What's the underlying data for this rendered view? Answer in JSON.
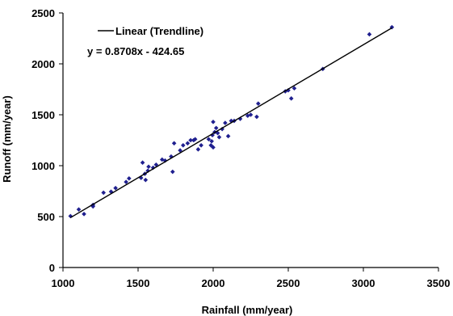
{
  "chart_data": {
    "type": "scatter",
    "title": "",
    "xlabel": "Rainfall (mm/year)",
    "ylabel": "Runoff (mm/year)",
    "xlim": [
      1000,
      3500
    ],
    "ylim": [
      0,
      2500
    ],
    "x_ticks": [
      "1000",
      "1500",
      "2000",
      "2500",
      "3000",
      "3500"
    ],
    "y_ticks": [
      "0",
      "500",
      "1000",
      "1500",
      "2000",
      "2500"
    ],
    "grid": false,
    "legend": {
      "label": "Linear (Trendline)",
      "position": "top-left"
    },
    "equation_label": "y = 0.8708x - 424.65",
    "trendline": {
      "slope": 0.8708,
      "intercept": -424.65,
      "x_range": [
        1050,
        3190
      ]
    },
    "marker_color": "#1f1f8f",
    "line_color": "#000000",
    "points": [
      [
        1050,
        505
      ],
      [
        1105,
        570
      ],
      [
        1140,
        525
      ],
      [
        1200,
        600
      ],
      [
        1200,
        615
      ],
      [
        1270,
        735
      ],
      [
        1320,
        745
      ],
      [
        1350,
        780
      ],
      [
        1420,
        840
      ],
      [
        1440,
        875
      ],
      [
        1520,
        880
      ],
      [
        1530,
        1030
      ],
      [
        1545,
        920
      ],
      [
        1550,
        860
      ],
      [
        1565,
        950
      ],
      [
        1570,
        990
      ],
      [
        1600,
        980
      ],
      [
        1620,
        1010
      ],
      [
        1660,
        1060
      ],
      [
        1680,
        1050
      ],
      [
        1720,
        1090
      ],
      [
        1730,
        940
      ],
      [
        1740,
        1220
      ],
      [
        1780,
        1150
      ],
      [
        1800,
        1200
      ],
      [
        1830,
        1220
      ],
      [
        1850,
        1250
      ],
      [
        1870,
        1250
      ],
      [
        1880,
        1260
      ],
      [
        1900,
        1160
      ],
      [
        1920,
        1200
      ],
      [
        1970,
        1260
      ],
      [
        1985,
        1200
      ],
      [
        1990,
        1240
      ],
      [
        1995,
        1300
      ],
      [
        2000,
        1180
      ],
      [
        2000,
        1430
      ],
      [
        2010,
        1330
      ],
      [
        2020,
        1370
      ],
      [
        2030,
        1320
      ],
      [
        2040,
        1280
      ],
      [
        2060,
        1360
      ],
      [
        2080,
        1420
      ],
      [
        2100,
        1290
      ],
      [
        2120,
        1440
      ],
      [
        2140,
        1440
      ],
      [
        2180,
        1460
      ],
      [
        2230,
        1490
      ],
      [
        2250,
        1500
      ],
      [
        2290,
        1480
      ],
      [
        2300,
        1610
      ],
      [
        2480,
        1730
      ],
      [
        2500,
        1740
      ],
      [
        2520,
        1660
      ],
      [
        2540,
        1760
      ],
      [
        2730,
        1950
      ],
      [
        3040,
        2290
      ],
      [
        3190,
        2360
      ]
    ]
  }
}
